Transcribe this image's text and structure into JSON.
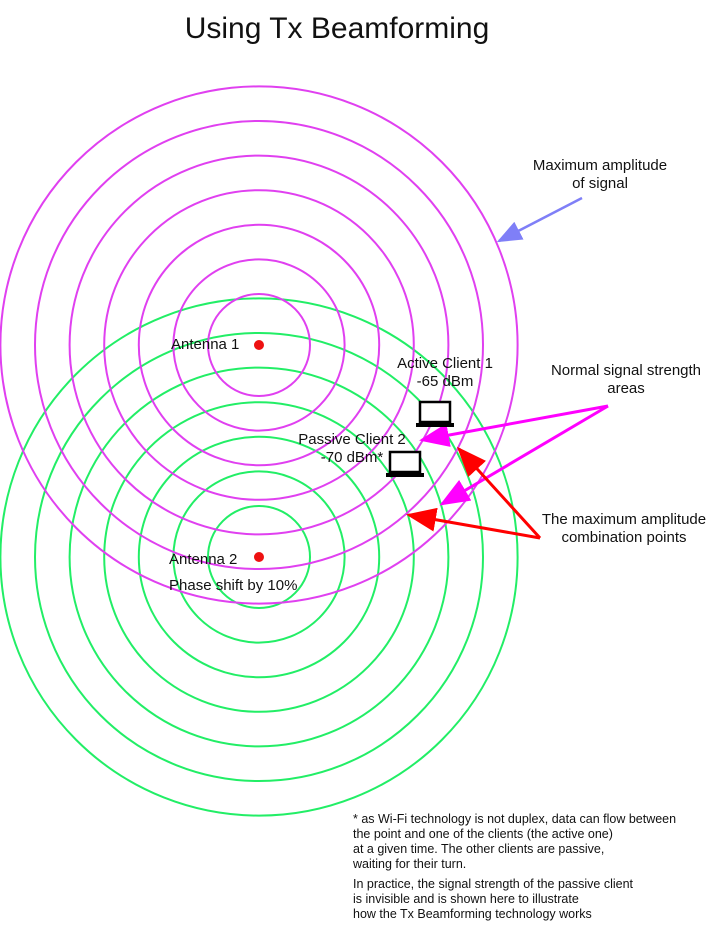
{
  "title": "Using Tx Beamforming",
  "colors": {
    "antenna1_waves": "#e040f0",
    "antenna2_waves": "#22ee66",
    "antenna_dot": "#ee1111",
    "max_amplitude_arrow": "#7f7ff7",
    "normal_arrows": "#ff00ff",
    "combination_arrows": "#ff0000"
  },
  "labels": {
    "antenna1": "Antenna 1",
    "antenna2": "Antenna 2",
    "phase_shift": "Phase shift by 10%",
    "active_client": "Active Client 1",
    "active_client_signal": "-65 dBm",
    "passive_client": "Passive Client 2",
    "passive_client_signal": "-70 dBm*",
    "max_amplitude": [
      "Maximum amplitude",
      "of signal"
    ],
    "normal_strength": [
      "Normal signal strength",
      "areas"
    ],
    "combination_points": [
      "The maximum amplitude",
      "combination points"
    ]
  },
  "notes": {
    "footnote": [
      "* as Wi-Fi technology is not duplex, data can flow between",
      "the point and one of the clients  (the active one)",
      "at a given time. The other clients are passive,",
      "waiting for their turn."
    ],
    "practice": [
      "In practice, the signal strength of the passive client",
      "is invisible and is shown here to illustrate",
      "how the Tx Beamforming technology works"
    ]
  },
  "icons": {
    "client": "laptop-icon",
    "antenna": "dot-icon"
  }
}
